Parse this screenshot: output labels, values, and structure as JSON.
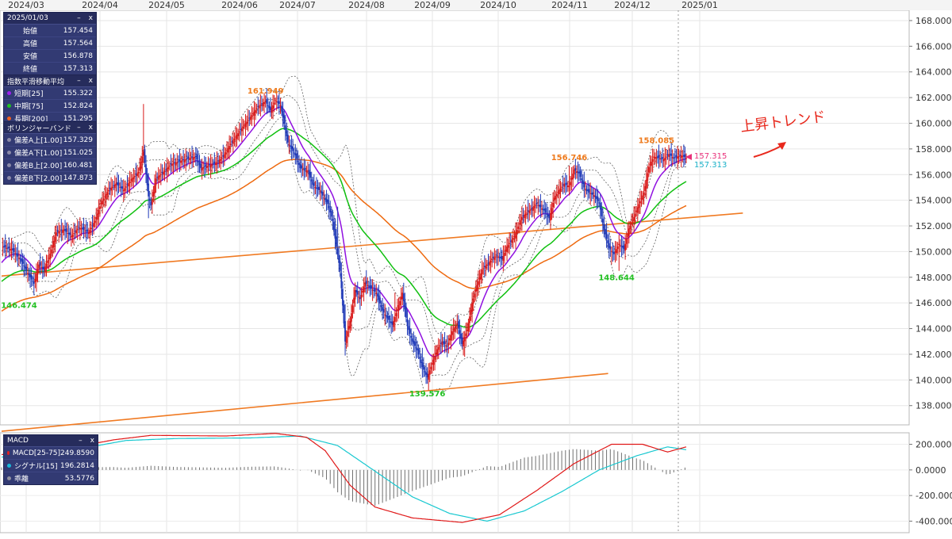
{
  "chart_data": [
    {
      "type": "candlestick",
      "title": "",
      "x_axis_labels": [
        "2024/03",
        "2024/04",
        "2024/05",
        "2024/06",
        "2024/07",
        "2024/08",
        "2024/09",
        "2024/10",
        "2024/11",
        "2024/12",
        "2025/01"
      ],
      "y_ticks": [
        "168.000",
        "166.000",
        "164.000",
        "162.000",
        "160.000",
        "158.000",
        "156.000",
        "154.000",
        "152.000",
        "150.000",
        "148.000",
        "146.000",
        "144.000",
        "142.000",
        "140.000",
        "138.000"
      ],
      "ylim": [
        136.5,
        168.8
      ],
      "grid": true,
      "close_path": [
        [
          0,
          150.4
        ],
        [
          8,
          150.2
        ],
        [
          15,
          149.4
        ],
        [
          20,
          148.5
        ],
        [
          26,
          147.5
        ],
        [
          30,
          149
        ],
        [
          34,
          148.6
        ],
        [
          38,
          149.5
        ],
        [
          44,
          151.5
        ],
        [
          50,
          151.7
        ],
        [
          56,
          151.2
        ],
        [
          62,
          151.9
        ],
        [
          70,
          151.5
        ],
        [
          75,
          152.4
        ],
        [
          80,
          153.8
        ],
        [
          86,
          154.8
        ],
        [
          92,
          155.3
        ],
        [
          98,
          154.8
        ],
        [
          104,
          155.6
        ],
        [
          110,
          156.2
        ],
        [
          114,
          157.8
        ],
        [
          118,
          154.3
        ],
        [
          120,
          153.6
        ],
        [
          124,
          155.7
        ],
        [
          130,
          156.2
        ],
        [
          136,
          156.8
        ],
        [
          142,
          157
        ],
        [
          148,
          157.2
        ],
        [
          156,
          157.4
        ],
        [
          160,
          156.5
        ],
        [
          166,
          156.7
        ],
        [
          172,
          156.9
        ],
        [
          178,
          157.4
        ],
        [
          184,
          158.4
        ],
        [
          192,
          159.5
        ],
        [
          200,
          160.5
        ],
        [
          206,
          161.3
        ],
        [
          212,
          161.7
        ],
        [
          216,
          161
        ],
        [
          220,
          161.8
        ],
        [
          224,
          161.4
        ],
        [
          230,
          158.5
        ],
        [
          236,
          157.5
        ],
        [
          240,
          156.5
        ],
        [
          246,
          156.3
        ],
        [
          250,
          155.2
        ],
        [
          256,
          154.7
        ],
        [
          262,
          153.7
        ],
        [
          266,
          152.4
        ],
        [
          268,
          151
        ],
        [
          272,
          148.5
        ],
        [
          274,
          145.8
        ],
        [
          276,
          143
        ],
        [
          280,
          144.6
        ],
        [
          284,
          147
        ],
        [
          288,
          146.3
        ],
        [
          292,
          147.6
        ],
        [
          297,
          147.1
        ],
        [
          301,
          146.8
        ],
        [
          306,
          145.4
        ],
        [
          310,
          144.8
        ],
        [
          314,
          144.3
        ],
        [
          318,
          145.5
        ],
        [
          322,
          146.8
        ],
        [
          326,
          144.2
        ],
        [
          330,
          143
        ],
        [
          334,
          142.3
        ],
        [
          338,
          141
        ],
        [
          342,
          140.2
        ],
        [
          346,
          141.3
        ],
        [
          350,
          142.4
        ],
        [
          354,
          143
        ],
        [
          358,
          142.6
        ],
        [
          362,
          143.8
        ],
        [
          366,
          144.4
        ],
        [
          370,
          142.8
        ],
        [
          374,
          143.9
        ],
        [
          378,
          146
        ],
        [
          382,
          147.4
        ],
        [
          386,
          148.6
        ],
        [
          390,
          149
        ],
        [
          394,
          149.4
        ],
        [
          398,
          149.7
        ],
        [
          402,
          149.4
        ],
        [
          406,
          150.4
        ],
        [
          412,
          151.2
        ],
        [
          418,
          152.7
        ],
        [
          424,
          153.2
        ],
        [
          430,
          153.7
        ],
        [
          436,
          153.2
        ],
        [
          440,
          152.6
        ],
        [
          444,
          154.2
        ],
        [
          448,
          154.8
        ],
        [
          452,
          155.3
        ],
        [
          456,
          155.1
        ],
        [
          460,
          156.4
        ],
        [
          464,
          156.1
        ],
        [
          468,
          155
        ],
        [
          472,
          154.6
        ],
        [
          476,
          154.4
        ],
        [
          480,
          153.8
        ],
        [
          484,
          151.7
        ],
        [
          488,
          150.3
        ],
        [
          492,
          149.8
        ],
        [
          496,
          150.6
        ],
        [
          500,
          150.2
        ],
        [
          504,
          151.8
        ],
        [
          508,
          152.7
        ],
        [
          512,
          153.7
        ],
        [
          516,
          154.6
        ],
        [
          520,
          156.6
        ],
        [
          524,
          157.4
        ],
        [
          528,
          157.3
        ],
        [
          532,
          157.2
        ],
        [
          536,
          157.6
        ],
        [
          540,
          157.3
        ],
        [
          546,
          157.5
        ],
        [
          550,
          157.3
        ]
      ],
      "wick_highs": [
        [
          114,
          161.5
        ],
        [
          220,
          162
        ],
        [
          270,
          153.5
        ],
        [
          276,
          145.9
        ],
        [
          316,
          146.8
        ],
        [
          338,
          142.5
        ],
        [
          398,
          150.2
        ],
        [
          456,
          156.7
        ],
        [
          476,
          154.9
        ],
        [
          488,
          151.5
        ],
        [
          526,
          158
        ]
      ],
      "wick_lows": [
        [
          26,
          146.6
        ],
        [
          118,
          152.6
        ],
        [
          216,
          160.5
        ],
        [
          276,
          141.9
        ],
        [
          342,
          139.7
        ],
        [
          372,
          141.8
        ],
        [
          490,
          149
        ],
        [
          496,
          148.5
        ]
      ],
      "price_annotations": [
        {
          "text": "161.949",
          "date_index": 212,
          "value": 161.949,
          "color": "#ee7a1c"
        },
        {
          "text": "146.474",
          "date_index": 14,
          "value": 146.474,
          "color": "#22c022"
        },
        {
          "text": "139.576",
          "date_index": 342,
          "value": 139.576,
          "color": "#22c022"
        },
        {
          "text": "156.746",
          "date_index": 456,
          "value": 156.746,
          "color": "#ee7a1c"
        },
        {
          "text": "148.644",
          "date_index": 494,
          "value": 148.644,
          "color": "#22c022"
        },
        {
          "text": "158.085",
          "date_index": 526,
          "value": 158.085,
          "color": "#ee7a1c"
        }
      ],
      "last_markers": [
        {
          "text": "157.315",
          "value": 157.315,
          "color": "#e8307a"
        },
        {
          "text": "157.313",
          "value": 157.313,
          "color": "#18b0c8"
        }
      ],
      "trend_text": "上昇トレンド",
      "trendlines": [
        {
          "from": [
            0,
            148.1
          ],
          "to": [
            570,
            153.0
          ]
        },
        {
          "from": [
            0,
            136.0
          ],
          "to": [
            500,
            140.5
          ]
        }
      ],
      "series": [
        {
          "name": "短期[25]",
          "color": "#9010e0",
          "smooth": 20
        },
        {
          "name": "中期[75]",
          "color": "#10c010",
          "smooth": 70
        },
        {
          "name": "長期[200]",
          "color": "#ee6a10",
          "smooth": 160
        },
        {
          "name": "偏差A上[1.00]",
          "style": "dotted",
          "band": "upper",
          "k": 1
        },
        {
          "name": "偏差A下[1.00]",
          "style": "dotted",
          "band": "lower",
          "k": 1
        },
        {
          "name": "偏差B上[2.00]",
          "style": "dotted",
          "band": "upper",
          "k": 2
        },
        {
          "name": "偏差B下[2.00]",
          "style": "dotted",
          "band": "lower",
          "k": 2
        }
      ]
    },
    {
      "type": "line+bar",
      "title": "MACD",
      "y_ticks": [
        "200.0000",
        "0.0000",
        "-200.0000",
        "-400.0000"
      ],
      "ylim": [
        -490,
        290
      ],
      "grid": true,
      "series": [
        {
          "name": "MACD[25-75]",
          "color": "#e01818",
          "points": [
            [
              0,
              120
            ],
            [
              60,
              180
            ],
            [
              90,
              235
            ],
            [
              120,
              270
            ],
            [
              180,
              265
            ],
            [
              220,
              285
            ],
            [
              245,
              255
            ],
            [
              260,
              150
            ],
            [
              280,
              -120
            ],
            [
              300,
              -290
            ],
            [
              330,
              -375
            ],
            [
              370,
              -410
            ],
            [
              400,
              -350
            ],
            [
              430,
              -160
            ],
            [
              460,
              50
            ],
            [
              490,
              200
            ],
            [
              515,
              200
            ],
            [
              535,
              140
            ],
            [
              550,
              180
            ],
            [
              575,
              250
            ],
            [
              590,
              255
            ]
          ]
        },
        {
          "name": "シグナル[15]",
          "color": "#18c8d0",
          "points": [
            [
              0,
              100
            ],
            [
              60,
              160
            ],
            [
              100,
              230
            ],
            [
              140,
              245
            ],
            [
              200,
              250
            ],
            [
              240,
              265
            ],
            [
              270,
              190
            ],
            [
              300,
              -10
            ],
            [
              330,
              -210
            ],
            [
              360,
              -340
            ],
            [
              390,
              -400
            ],
            [
              420,
              -320
            ],
            [
              450,
              -170
            ],
            [
              480,
              0
            ],
            [
              510,
              110
            ],
            [
              535,
              180
            ],
            [
              555,
              150
            ],
            [
              575,
              170
            ],
            [
              590,
              200
            ]
          ]
        },
        {
          "name": "乖離",
          "color": "#606060",
          "bars": "histogram"
        }
      ]
    }
  ],
  "legend_panels": {
    "ohlc": {
      "date": "2025/01/03",
      "rows": [
        {
          "label": "始値",
          "value": "157.454"
        },
        {
          "label": "高値",
          "value": "157.564"
        },
        {
          "label": "安値",
          "value": "156.878"
        },
        {
          "label": "終値",
          "value": "157.313"
        }
      ]
    },
    "ema": {
      "title": "指数平滑移動平均",
      "rows": [
        {
          "label": "短期[25]",
          "value": "155.322",
          "color": "#a020f0"
        },
        {
          "label": "中期[75]",
          "value": "152.824",
          "color": "#20c020"
        },
        {
          "label": "長期[200]",
          "value": "151.295",
          "color": "#f06020"
        }
      ]
    },
    "bb": {
      "title": "ボリンジャーバンド",
      "rows": [
        {
          "label": "偏差A上[1.00]",
          "value": "157.329"
        },
        {
          "label": "偏差A下[1.00]",
          "value": "151.025"
        },
        {
          "label": "偏差B上[2.00]",
          "value": "160.481"
        },
        {
          "label": "偏差B下[2.00]",
          "value": "147.873"
        }
      ]
    },
    "macd": {
      "title": "MACD",
      "rows": [
        {
          "label": "MACD[25-75]",
          "value": "249.8590",
          "color": "#e02020"
        },
        {
          "label": "シグナル[15]",
          "value": "196.2814",
          "color": "#18b8d8"
        },
        {
          "label": "乖離",
          "value": "53.5776",
          "color": "#9090a0"
        }
      ]
    }
  },
  "controls": {
    "minimize": "–",
    "close": "x"
  },
  "colors": {
    "up": "#d81818",
    "down": "#1f39b8",
    "trend_arrow": "#e8281c"
  }
}
